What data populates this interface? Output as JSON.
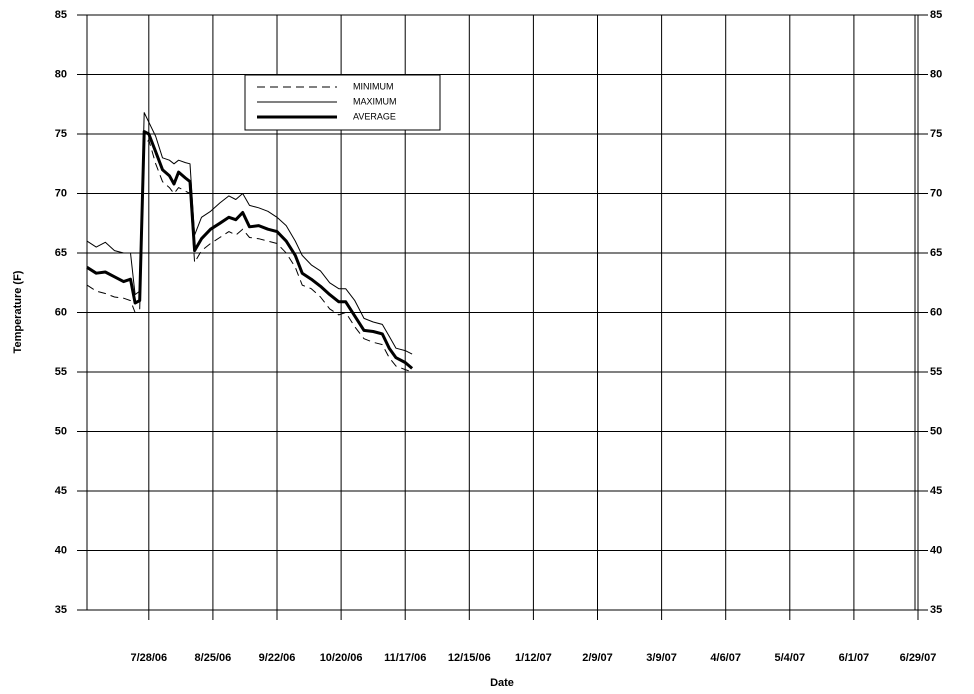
{
  "chart_data": {
    "type": "line",
    "xlabel": "Date",
    "ylabel": "Temperature (F)",
    "x": [
      "2006-07-01",
      "2006-07-05",
      "2006-07-09",
      "2006-07-13",
      "2006-07-17",
      "2006-07-20",
      "2006-07-22",
      "2006-07-24",
      "2006-07-26",
      "2006-07-28",
      "2006-07-31",
      "2006-08-03",
      "2006-08-06",
      "2006-08-08",
      "2006-08-10",
      "2006-08-13",
      "2006-08-15",
      "2006-08-17",
      "2006-08-20",
      "2006-08-24",
      "2006-08-28",
      "2006-09-01",
      "2006-09-04",
      "2006-09-07",
      "2006-09-10",
      "2006-09-14",
      "2006-09-18",
      "2006-09-22",
      "2006-09-26",
      "2006-09-30",
      "2006-10-03",
      "2006-10-07",
      "2006-10-11",
      "2006-10-15",
      "2006-10-19",
      "2006-10-22",
      "2006-10-26",
      "2006-10-30",
      "2006-11-03",
      "2006-11-07",
      "2006-11-10",
      "2006-11-13",
      "2006-11-17",
      "2006-11-20"
    ],
    "series": [
      {
        "name": "MINIMUM",
        "color": "#000000",
        "style": "dashed",
        "width": 1,
        "values": [
          62.3,
          61.8,
          61.6,
          61.3,
          61.2,
          61.0,
          60.0,
          60.3,
          74.0,
          74.5,
          72.5,
          71.0,
          70.5,
          70.0,
          70.5,
          70.2,
          70.0,
          64.2,
          65.2,
          65.8,
          66.3,
          66.8,
          66.5,
          67.0,
          66.3,
          66.2,
          66.0,
          65.8,
          65.0,
          63.8,
          62.3,
          62.0,
          61.3,
          60.3,
          59.8,
          60.0,
          58.8,
          57.8,
          57.5,
          57.3,
          56.2,
          55.5,
          55.2,
          55.0
        ]
      },
      {
        "name": "MAXIMUM",
        "color": "#000000",
        "style": "solid",
        "width": 1,
        "values": [
          66.0,
          65.5,
          65.9,
          65.2,
          65.0,
          65.0,
          61.5,
          61.8,
          76.8,
          76.0,
          74.8,
          73.0,
          72.8,
          72.5,
          72.8,
          72.6,
          72.5,
          66.5,
          68.0,
          68.5,
          69.2,
          69.8,
          69.5,
          70.0,
          69.0,
          68.8,
          68.5,
          68.0,
          67.3,
          66.0,
          64.8,
          64.0,
          63.5,
          62.5,
          62.0,
          62.0,
          61.0,
          59.5,
          59.2,
          59.0,
          58.0,
          57.0,
          56.8,
          56.5
        ]
      },
      {
        "name": "AVERAGE",
        "color": "#000000",
        "style": "solid",
        "width": 3,
        "values": [
          63.8,
          63.3,
          63.4,
          63.0,
          62.6,
          62.8,
          60.8,
          61.0,
          75.2,
          75.0,
          73.5,
          72.0,
          71.5,
          70.8,
          71.8,
          71.3,
          71.0,
          65.2,
          66.2,
          67.0,
          67.5,
          68.0,
          67.8,
          68.4,
          67.2,
          67.3,
          67.0,
          66.8,
          66.0,
          64.8,
          63.3,
          62.8,
          62.2,
          61.5,
          60.9,
          60.9,
          59.7,
          58.5,
          58.4,
          58.2,
          57.0,
          56.2,
          55.8,
          55.3
        ]
      }
    ],
    "xlim": [
      "2006-07-01",
      "2007-06-29"
    ],
    "xticks": [
      {
        "value": "2006-07-28",
        "label": "7/28/06"
      },
      {
        "value": "2006-08-25",
        "label": "8/25/06"
      },
      {
        "value": "2006-09-22",
        "label": "9/22/06"
      },
      {
        "value": "2006-10-20",
        "label": "10/20/06"
      },
      {
        "value": "2006-11-17",
        "label": "11/17/06"
      },
      {
        "value": "2006-12-15",
        "label": "12/15/06"
      },
      {
        "value": "2007-01-12",
        "label": "1/12/07"
      },
      {
        "value": "2007-02-09",
        "label": "2/9/07"
      },
      {
        "value": "2007-03-09",
        "label": "3/9/07"
      },
      {
        "value": "2007-04-06",
        "label": "4/6/07"
      },
      {
        "value": "2007-05-04",
        "label": "5/4/07"
      },
      {
        "value": "2007-06-01",
        "label": "6/1/07"
      },
      {
        "value": "2007-06-29",
        "label": "6/29/07"
      }
    ],
    "ylim": [
      35,
      85
    ],
    "yticks": [
      35,
      40,
      45,
      50,
      55,
      60,
      65,
      70,
      75,
      80,
      85
    ],
    "grid": true
  }
}
